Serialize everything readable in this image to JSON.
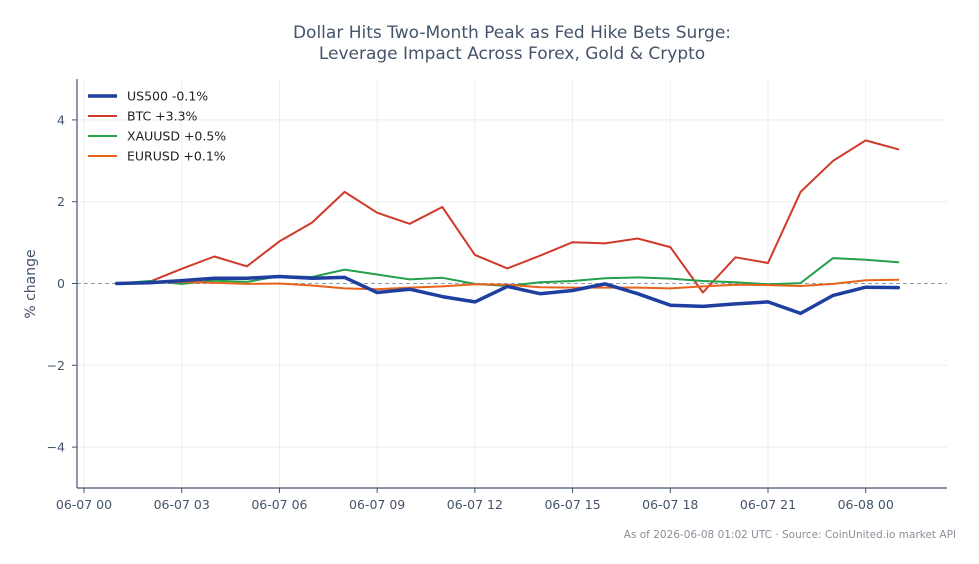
{
  "chart_data": {
    "type": "line",
    "title": "Dollar Hits Two-Month Peak as Fed Hike Bets Surge:",
    "subtitle": "Leverage Impact Across Forex, Gold & Crypto",
    "ylabel": "% change",
    "xlabel": "",
    "ylim": [
      -5,
      5
    ],
    "xlim": [
      "06-07 00:00",
      "06-08 02:15"
    ],
    "yticks": [
      -4,
      -2,
      0,
      2,
      4
    ],
    "ytick_labels": [
      "−4",
      "−2",
      "0",
      "2",
      "4"
    ],
    "xticks": [
      "06-07 00",
      "06-07 03",
      "06-07 06",
      "06-07 09",
      "06-07 12",
      "06-07 15",
      "06-07 18",
      "06-07 21",
      "06-08 00"
    ],
    "x": [
      "06-07 01:00",
      "06-07 02:00",
      "06-07 03:00",
      "06-07 04:00",
      "06-07 05:00",
      "06-07 06:00",
      "06-07 07:00",
      "06-07 08:00",
      "06-07 09:00",
      "06-07 10:00",
      "06-07 11:00",
      "06-07 12:00",
      "06-07 13:00",
      "06-07 14:00",
      "06-07 15:00",
      "06-07 16:00",
      "06-07 17:00",
      "06-07 18:00",
      "06-07 19:00",
      "06-07 20:00",
      "06-07 21:00",
      "06-07 22:00",
      "06-07 23:00",
      "06-08 00:00",
      "06-08 01:00"
    ],
    "grid": true,
    "legend_position": "top-left",
    "reference_line": 0,
    "series": [
      {
        "name": "US500 -0.1%",
        "color": "#1f3fa0",
        "width": 3.5,
        "values": [
          0.0,
          0.02,
          0.07,
          0.13,
          0.13,
          0.17,
          0.13,
          0.15,
          -0.22,
          -0.14,
          -0.32,
          -0.45,
          -0.07,
          -0.25,
          -0.17,
          -0.01,
          -0.25,
          -0.53,
          -0.56,
          -0.5,
          -0.45,
          -0.73,
          -0.29,
          -0.09,
          -0.1
        ]
      },
      {
        "name": "BTC +3.3%",
        "color": "#d03a2b",
        "width": 2,
        "values": [
          0.0,
          0.04,
          0.36,
          0.66,
          0.42,
          1.03,
          1.49,
          2.24,
          1.73,
          1.46,
          1.87,
          0.7,
          0.37,
          0.68,
          1.01,
          0.98,
          1.1,
          0.89,
          -0.22,
          0.64,
          0.5,
          2.24,
          3.0,
          3.5,
          3.28
        ]
      },
      {
        "name": "XAUUSD +0.5%",
        "color": "#22a04b",
        "width": 2,
        "values": [
          0.0,
          0.06,
          -0.01,
          0.07,
          0.04,
          0.18,
          0.16,
          0.34,
          0.22,
          0.1,
          0.14,
          -0.01,
          -0.06,
          0.03,
          0.06,
          0.13,
          0.15,
          0.12,
          0.06,
          0.03,
          -0.02,
          0.01,
          0.62,
          0.58,
          0.52
        ]
      },
      {
        "name": "EURUSD +0.1%",
        "color": "#e8621a",
        "width": 2,
        "values": [
          0.0,
          0.01,
          0.04,
          0.02,
          -0.01,
          0.0,
          -0.05,
          -0.12,
          -0.14,
          -0.1,
          -0.07,
          -0.02,
          -0.03,
          -0.09,
          -0.1,
          -0.1,
          -0.1,
          -0.12,
          -0.07,
          -0.03,
          -0.04,
          -0.06,
          -0.01,
          0.08,
          0.09
        ]
      }
    ]
  },
  "footer": "As of 2026-06-08 01:02 UTC · Source: CoinUnited.io market API"
}
